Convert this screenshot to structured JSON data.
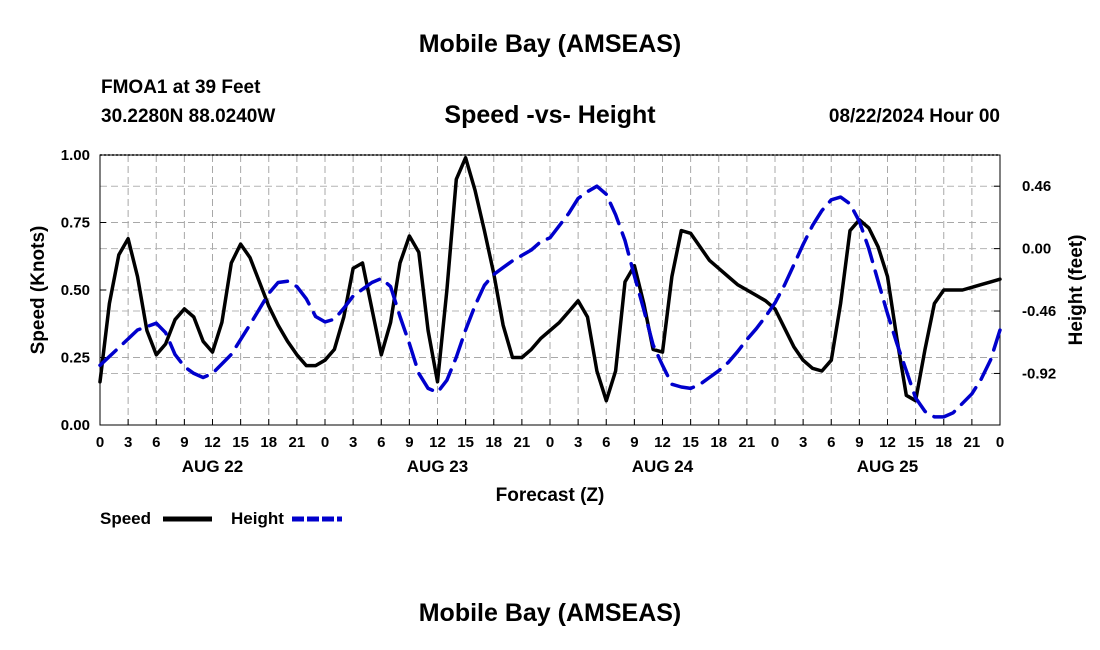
{
  "header": {
    "title": "Mobile Bay (AMSEAS)",
    "station": "FMOA1 at 39 Feet",
    "coordinates": "30.2280N  88.0240W",
    "subtitle": "Speed -vs- Height",
    "datetime": "08/22/2024 Hour 00"
  },
  "footer": {
    "title": "Mobile Bay (AMSEAS)"
  },
  "chart_data": {
    "type": "line",
    "xlabel": "Forecast (Z)",
    "ylabel_left": "Speed (Knots)",
    "ylabel_right": "Height (feet)",
    "x_range_hours": [
      0,
      96
    ],
    "y_left_range": [
      0,
      1
    ],
    "y_left_ticks": [
      "0.00",
      "0.25",
      "0.50",
      "0.75",
      "1.00"
    ],
    "y_right_range": [
      -1.3,
      0.69
    ],
    "y_right_ticks": [
      {
        "label": "0.46",
        "value": 0.46
      },
      {
        "label": "0.00",
        "value": 0.0
      },
      {
        "label": "-0.46",
        "value": -0.46
      },
      {
        "label": "-0.92",
        "value": -0.92
      }
    ],
    "x_tick_labels": [
      "0",
      "3",
      "6",
      "9",
      "12",
      "15",
      "18",
      "21",
      "0",
      "3",
      "6",
      "9",
      "12",
      "15",
      "18",
      "21",
      "0",
      "3",
      "6",
      "9",
      "12",
      "15",
      "18",
      "21",
      "0",
      "3",
      "6",
      "9",
      "12",
      "15",
      "18",
      "21",
      "0"
    ],
    "date_labels": [
      {
        "label": "AUG 22",
        "hour": 12
      },
      {
        "label": "AUG 23",
        "hour": 36
      },
      {
        "label": "AUG 24",
        "hour": 60
      },
      {
        "label": "AUG 25",
        "hour": 84
      }
    ],
    "grid": true,
    "legend": [
      "Speed",
      "Height"
    ],
    "series": [
      {
        "name": "Speed",
        "color": "#000000",
        "axis": "left",
        "style": "solid",
        "points": [
          [
            0,
            0.16
          ],
          [
            1,
            0.45
          ],
          [
            2,
            0.63
          ],
          [
            3,
            0.69
          ],
          [
            4,
            0.55
          ],
          [
            5,
            0.35
          ],
          [
            6,
            0.26
          ],
          [
            7,
            0.3
          ],
          [
            8,
            0.39
          ],
          [
            9,
            0.43
          ],
          [
            10,
            0.4
          ],
          [
            11,
            0.31
          ],
          [
            12,
            0.27
          ],
          [
            13,
            0.38
          ],
          [
            14,
            0.6
          ],
          [
            15,
            0.67
          ],
          [
            16,
            0.62
          ],
          [
            17,
            0.53
          ],
          [
            18,
            0.44
          ],
          [
            19,
            0.37
          ],
          [
            20,
            0.31
          ],
          [
            21,
            0.26
          ],
          [
            22,
            0.22
          ],
          [
            23,
            0.22
          ],
          [
            24,
            0.24
          ],
          [
            25,
            0.28
          ],
          [
            26,
            0.4
          ],
          [
            27,
            0.58
          ],
          [
            28,
            0.6
          ],
          [
            29,
            0.43
          ],
          [
            30,
            0.26
          ],
          [
            31,
            0.38
          ],
          [
            32,
            0.6
          ],
          [
            33,
            0.7
          ],
          [
            34,
            0.64
          ],
          [
            35,
            0.35
          ],
          [
            36,
            0.16
          ],
          [
            37,
            0.5
          ],
          [
            38,
            0.91
          ],
          [
            39,
            0.99
          ],
          [
            40,
            0.87
          ],
          [
            41,
            0.72
          ],
          [
            42,
            0.56
          ],
          [
            43,
            0.37
          ],
          [
            44,
            0.25
          ],
          [
            45,
            0.25
          ],
          [
            46,
            0.28
          ],
          [
            47,
            0.32
          ],
          [
            48,
            0.35
          ],
          [
            49,
            0.38
          ],
          [
            50,
            0.42
          ],
          [
            51,
            0.46
          ],
          [
            52,
            0.4
          ],
          [
            53,
            0.2
          ],
          [
            54,
            0.09
          ],
          [
            55,
            0.2
          ],
          [
            56,
            0.53
          ],
          [
            57,
            0.59
          ],
          [
            58,
            0.45
          ],
          [
            59,
            0.28
          ],
          [
            60,
            0.27
          ],
          [
            61,
            0.55
          ],
          [
            62,
            0.72
          ],
          [
            63,
            0.71
          ],
          [
            64,
            0.66
          ],
          [
            65,
            0.61
          ],
          [
            66,
            0.58
          ],
          [
            67,
            0.55
          ],
          [
            68,
            0.52
          ],
          [
            69,
            0.5
          ],
          [
            70,
            0.48
          ],
          [
            71,
            0.46
          ],
          [
            72,
            0.43
          ],
          [
            73,
            0.36
          ],
          [
            74,
            0.29
          ],
          [
            75,
            0.24
          ],
          [
            76,
            0.21
          ],
          [
            77,
            0.2
          ],
          [
            78,
            0.24
          ],
          [
            79,
            0.45
          ],
          [
            80,
            0.72
          ],
          [
            81,
            0.76
          ],
          [
            82,
            0.73
          ],
          [
            83,
            0.66
          ],
          [
            84,
            0.55
          ],
          [
            85,
            0.32
          ],
          [
            86,
            0.11
          ],
          [
            87,
            0.09
          ],
          [
            88,
            0.28
          ],
          [
            89,
            0.45
          ],
          [
            90,
            0.5
          ],
          [
            91,
            0.5
          ],
          [
            92,
            0.5
          ],
          [
            93,
            0.51
          ],
          [
            94,
            0.52
          ],
          [
            95,
            0.53
          ],
          [
            96,
            0.54
          ]
        ]
      },
      {
        "name": "Height",
        "color": "#0000cc",
        "axis": "right",
        "style": "dashed",
        "points": [
          [
            0,
            -0.86
          ],
          [
            2,
            -0.73
          ],
          [
            4,
            -0.6
          ],
          [
            6,
            -0.55
          ],
          [
            7,
            -0.62
          ],
          [
            8,
            -0.78
          ],
          [
            9,
            -0.87
          ],
          [
            10,
            -0.92
          ],
          [
            11,
            -0.95
          ],
          [
            12,
            -0.92
          ],
          [
            14,
            -0.78
          ],
          [
            16,
            -0.56
          ],
          [
            18,
            -0.33
          ],
          [
            19,
            -0.25
          ],
          [
            20,
            -0.24
          ],
          [
            21,
            -0.28
          ],
          [
            22,
            -0.37
          ],
          [
            23,
            -0.5
          ],
          [
            24,
            -0.54
          ],
          [
            25,
            -0.52
          ],
          [
            26,
            -0.44
          ],
          [
            27,
            -0.35
          ],
          [
            28,
            -0.3
          ],
          [
            29,
            -0.25
          ],
          [
            30,
            -0.22
          ],
          [
            31,
            -0.28
          ],
          [
            32,
            -0.5
          ],
          [
            33,
            -0.7
          ],
          [
            34,
            -0.92
          ],
          [
            35,
            -1.03
          ],
          [
            36,
            -1.06
          ],
          [
            37,
            -0.97
          ],
          [
            38,
            -0.8
          ],
          [
            39,
            -0.6
          ],
          [
            40,
            -0.42
          ],
          [
            41,
            -0.27
          ],
          [
            42,
            -0.19
          ],
          [
            43,
            -0.14
          ],
          [
            44,
            -0.09
          ],
          [
            45,
            -0.05
          ],
          [
            46,
            -0.01
          ],
          [
            47,
            0.05
          ],
          [
            48,
            0.08
          ],
          [
            49,
            0.17
          ],
          [
            50,
            0.26
          ],
          [
            51,
            0.37
          ],
          [
            52,
            0.42
          ],
          [
            53,
            0.46
          ],
          [
            54,
            0.4
          ],
          [
            55,
            0.25
          ],
          [
            56,
            0.06
          ],
          [
            57,
            -0.2
          ],
          [
            58,
            -0.45
          ],
          [
            59,
            -0.71
          ],
          [
            60,
            -0.86
          ],
          [
            61,
            -1.0
          ],
          [
            62,
            -1.02
          ],
          [
            63,
            -1.03
          ],
          [
            64,
            -1.0
          ],
          [
            65,
            -0.95
          ],
          [
            66,
            -0.9
          ],
          [
            67,
            -0.84
          ],
          [
            68,
            -0.76
          ],
          [
            69,
            -0.67
          ],
          [
            70,
            -0.59
          ],
          [
            71,
            -0.5
          ],
          [
            72,
            -0.4
          ],
          [
            73,
            -0.27
          ],
          [
            74,
            -0.12
          ],
          [
            75,
            0.03
          ],
          [
            76,
            0.17
          ],
          [
            77,
            0.28
          ],
          [
            78,
            0.36
          ],
          [
            79,
            0.38
          ],
          [
            80,
            0.33
          ],
          [
            81,
            0.2
          ],
          [
            82,
            0.0
          ],
          [
            83,
            -0.24
          ],
          [
            84,
            -0.48
          ],
          [
            85,
            -0.7
          ],
          [
            86,
            -0.9
          ],
          [
            87,
            -1.1
          ],
          [
            88,
            -1.2
          ],
          [
            89,
            -1.24
          ],
          [
            90,
            -1.24
          ],
          [
            91,
            -1.21
          ],
          [
            92,
            -1.14
          ],
          [
            93,
            -1.07
          ],
          [
            94,
            -0.96
          ],
          [
            95,
            -0.82
          ],
          [
            96,
            -0.6
          ]
        ]
      }
    ]
  }
}
